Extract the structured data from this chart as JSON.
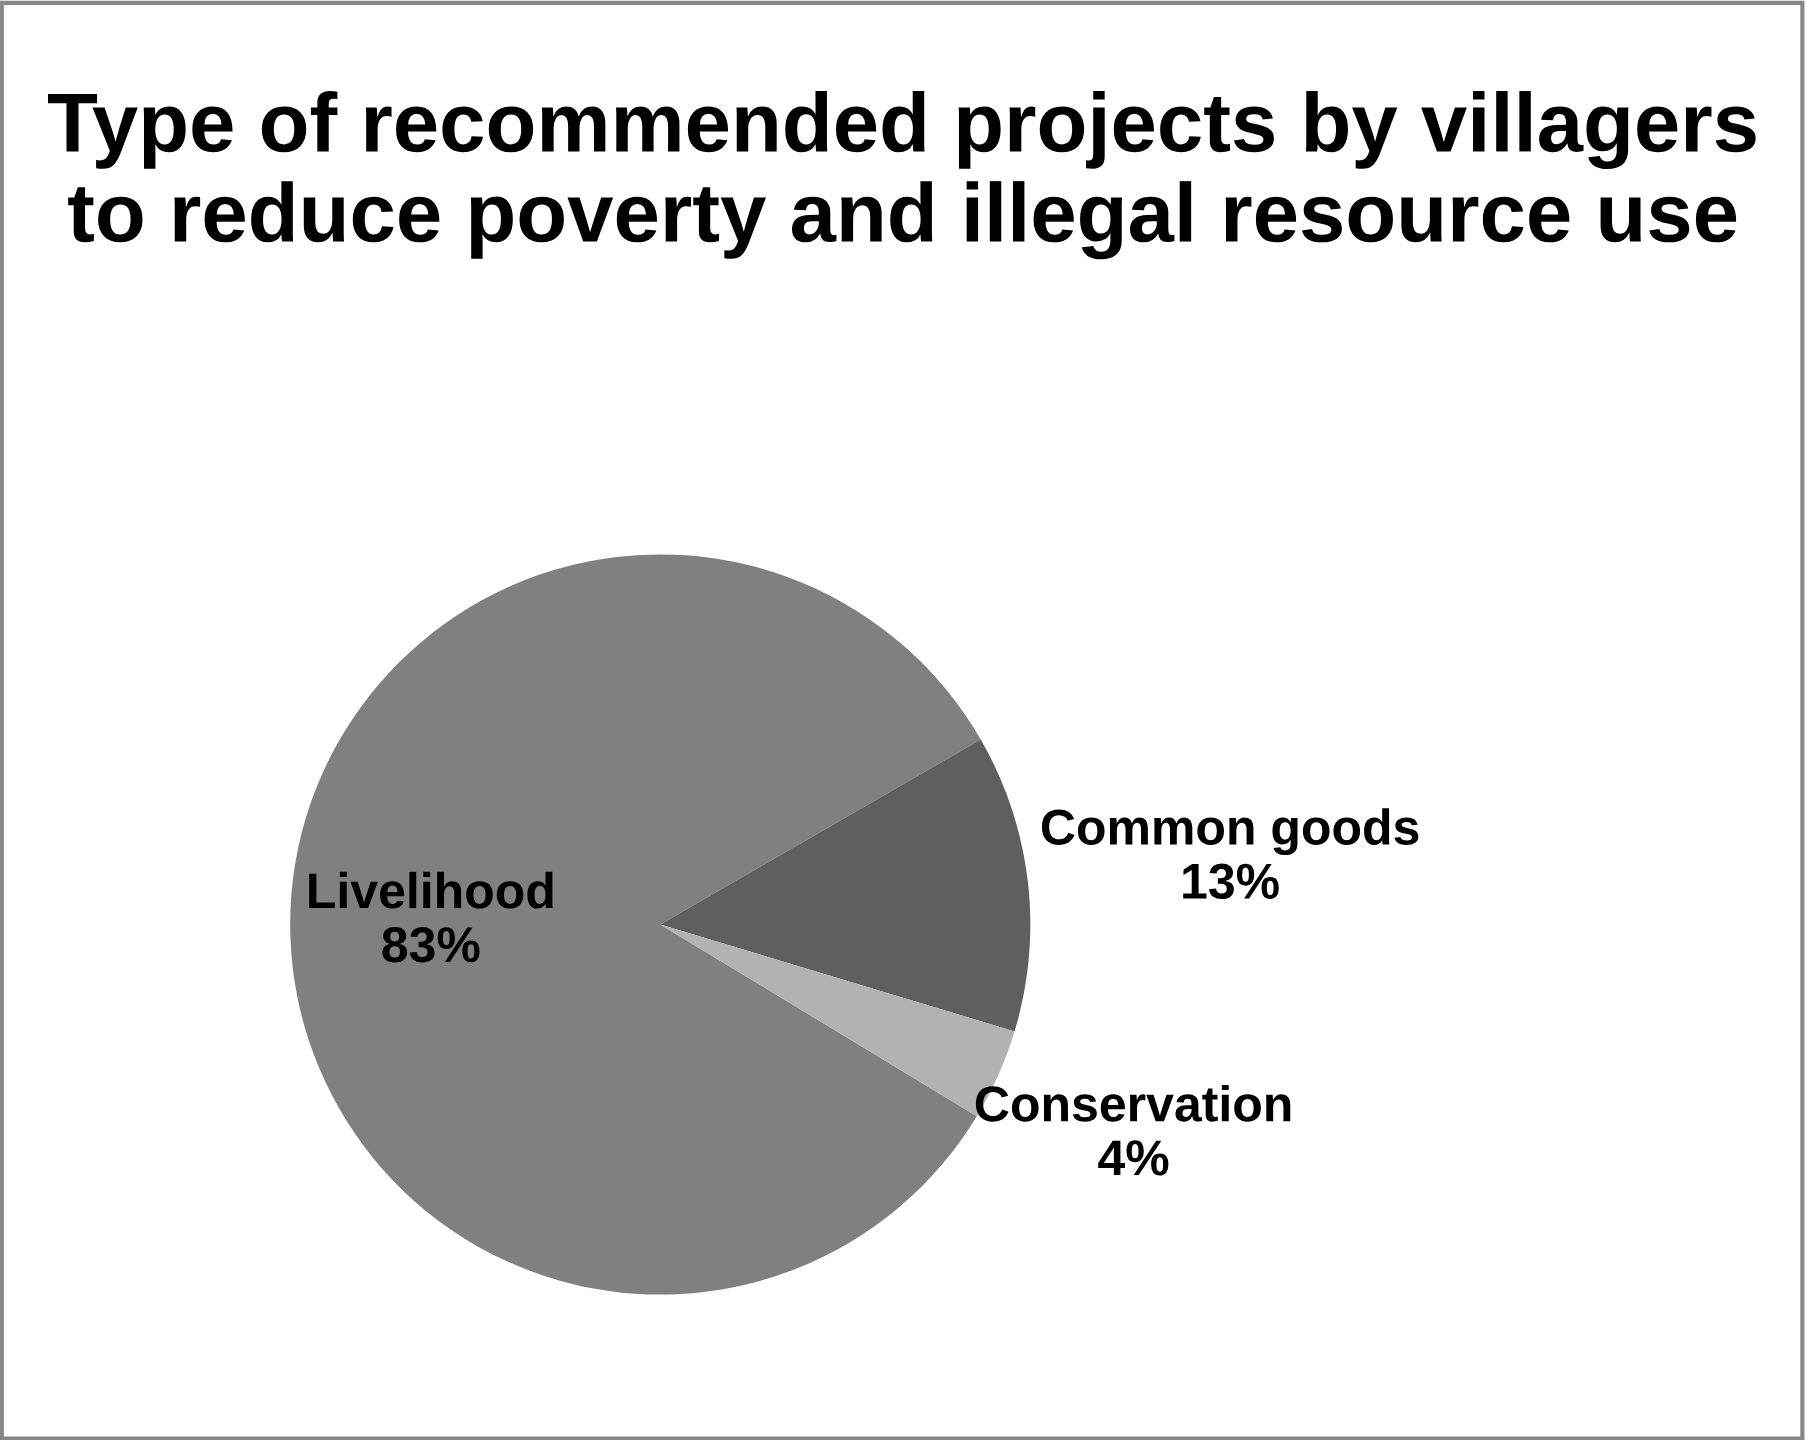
{
  "chart_data": {
    "type": "pie",
    "title": "Type of recommended projects by villagers to reduce poverty and illegal resource use",
    "categories": [
      "Livelihood",
      "Common goods",
      "Conservation"
    ],
    "values": [
      83,
      13,
      4
    ],
    "colors": [
      "#808080",
      "#5f5f5f",
      "#b2b2b2"
    ],
    "value_labels": [
      "83%",
      "13%",
      "4%"
    ],
    "legend": false
  }
}
